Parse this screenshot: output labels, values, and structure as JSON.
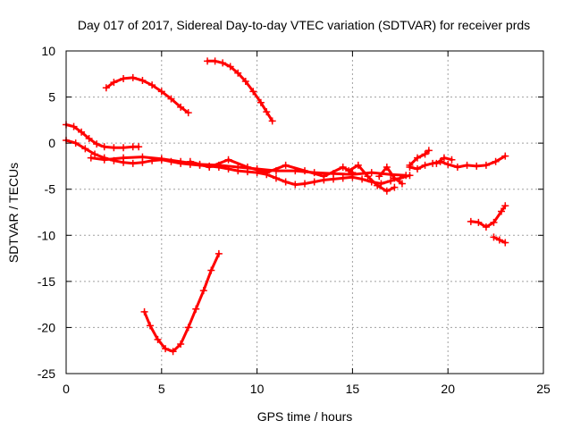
{
  "chart_data": {
    "type": "scatter",
    "title": "Day 017 of 2017, Sidereal Day-to-day VTEC variation (SDTVAR) for receiver prds",
    "xlabel": "GPS time / hours",
    "ylabel": "SDTVAR / TECUs",
    "xlim": [
      0,
      25
    ],
    "ylim": [
      -25,
      10
    ],
    "xticks": [
      "0",
      "5",
      "10",
      "15",
      "20",
      "25"
    ],
    "yticks": [
      "10",
      "5",
      "0",
      "-5",
      "-10",
      "-15",
      "-20",
      "-25"
    ],
    "grid": true,
    "marker": "plus",
    "color": "#ff0000",
    "series": [
      {
        "x": [
          2.1,
          2.5,
          3.0,
          3.5,
          4.0,
          4.5,
          5.0,
          5.5,
          6.0,
          6.4
        ],
        "y": [
          6.0,
          6.6,
          7.0,
          7.1,
          6.8,
          6.3,
          5.6,
          4.8,
          3.9,
          3.3
        ]
      },
      {
        "x": [
          7.4,
          7.8,
          8.2,
          8.6,
          9.0,
          9.4,
          9.8,
          10.2,
          10.5,
          10.8
        ],
        "y": [
          8.9,
          8.9,
          8.7,
          8.3,
          7.6,
          6.7,
          5.6,
          4.4,
          3.4,
          2.4
        ]
      },
      {
        "x": [
          4.1,
          4.4,
          4.8,
          5.2,
          5.6,
          6.0,
          6.4,
          6.8,
          7.2,
          7.6,
          8.0
        ],
        "y": [
          -18.3,
          -19.8,
          -21.3,
          -22.3,
          -22.6,
          -21.8,
          -20.0,
          -18.0,
          -16.0,
          -13.8,
          -12.0
        ]
      },
      {
        "x": [
          0.0,
          0.4,
          0.8,
          1.2,
          1.6,
          2.0,
          2.5,
          3.0,
          3.5,
          3.8
        ],
        "y": [
          2.0,
          1.8,
          1.2,
          0.5,
          -0.1,
          -0.4,
          -0.5,
          -0.5,
          -0.4,
          -0.4
        ]
      },
      {
        "x": [
          0.0,
          0.5,
          1.0,
          1.5,
          2.0,
          2.5,
          3.0,
          3.5,
          4.0,
          4.5,
          5.0,
          5.5,
          6.0,
          6.5,
          7.0,
          7.5,
          8.0,
          8.5,
          9.0,
          9.5,
          10.0,
          10.5,
          11.0,
          11.5,
          12.0,
          12.5,
          13.0,
          13.5,
          14.0,
          14.5,
          15.0,
          15.5,
          16.0,
          16.5,
          17.0,
          17.5,
          18.0
        ],
        "y": [
          0.3,
          0.0,
          -0.6,
          -1.2,
          -1.6,
          -1.9,
          -2.1,
          -2.2,
          -2.1,
          -1.9,
          -1.8,
          -2.0,
          -2.2,
          -2.3,
          -2.4,
          -2.5,
          -2.6,
          -2.8,
          -3.0,
          -3.1,
          -3.2,
          -3.4,
          -3.8,
          -4.2,
          -4.5,
          -4.4,
          -4.2,
          -4.0,
          -3.9,
          -3.8,
          -3.7,
          -3.9,
          -4.2,
          -4.4,
          -4.1,
          -3.8,
          -3.5
        ]
      },
      {
        "x": [
          1.3,
          2.0,
          3.0,
          4.0,
          5.0,
          6.0,
          7.0,
          8.0,
          9.0,
          10.0,
          11.0,
          12.0,
          13.0,
          14.0,
          15.0,
          16.0,
          17.0,
          17.8
        ],
        "y": [
          -1.6,
          -1.8,
          -1.6,
          -1.5,
          -1.7,
          -2.0,
          -2.3,
          -2.4,
          -2.6,
          -2.8,
          -3.0,
          -3.0,
          -3.2,
          -3.3,
          -3.4,
          -3.2,
          -3.4,
          -3.5
        ]
      },
      {
        "x": [
          6.5,
          7.5,
          8.5,
          9.5,
          10.5,
          11.5,
          12.5,
          13.5,
          14.5,
          15.0
        ],
        "y": [
          -2.0,
          -2.6,
          -1.8,
          -2.6,
          -3.2,
          -2.4,
          -3.0,
          -3.6,
          -2.6,
          -3.2
        ]
      },
      {
        "x": [
          14.8,
          15.3,
          15.8,
          16.3,
          16.8,
          17.2
        ],
        "y": [
          -3.0,
          -2.4,
          -3.6,
          -4.6,
          -5.2,
          -4.8
        ]
      },
      {
        "x": [
          16.4,
          16.8,
          17.2,
          17.6
        ],
        "y": [
          -3.6,
          -2.6,
          -3.8,
          -4.4
        ]
      },
      {
        "x": [
          18.0,
          18.4,
          18.8,
          19.2,
          19.6,
          20.0,
          20.5,
          21.0,
          21.5,
          22.0,
          22.5,
          23.0
        ],
        "y": [
          -2.6,
          -2.8,
          -2.4,
          -2.2,
          -2.0,
          -2.3,
          -2.6,
          -2.4,
          -2.5,
          -2.4,
          -2.0,
          -1.4
        ]
      },
      {
        "x": [
          18.0,
          18.4,
          18.8,
          19.0
        ],
        "y": [
          -2.4,
          -1.6,
          -1.2,
          -0.8
        ]
      },
      {
        "x": [
          19.4,
          19.8,
          20.2
        ],
        "y": [
          -2.2,
          -1.6,
          -1.8
        ]
      },
      {
        "x": [
          21.2,
          21.6,
          22.0,
          22.4,
          22.8,
          23.0
        ],
        "y": [
          -8.5,
          -8.6,
          -9.1,
          -8.6,
          -7.4,
          -6.8
        ]
      },
      {
        "x": [
          22.4,
          22.7,
          23.0
        ],
        "y": [
          -10.2,
          -10.5,
          -10.8
        ]
      }
    ]
  }
}
